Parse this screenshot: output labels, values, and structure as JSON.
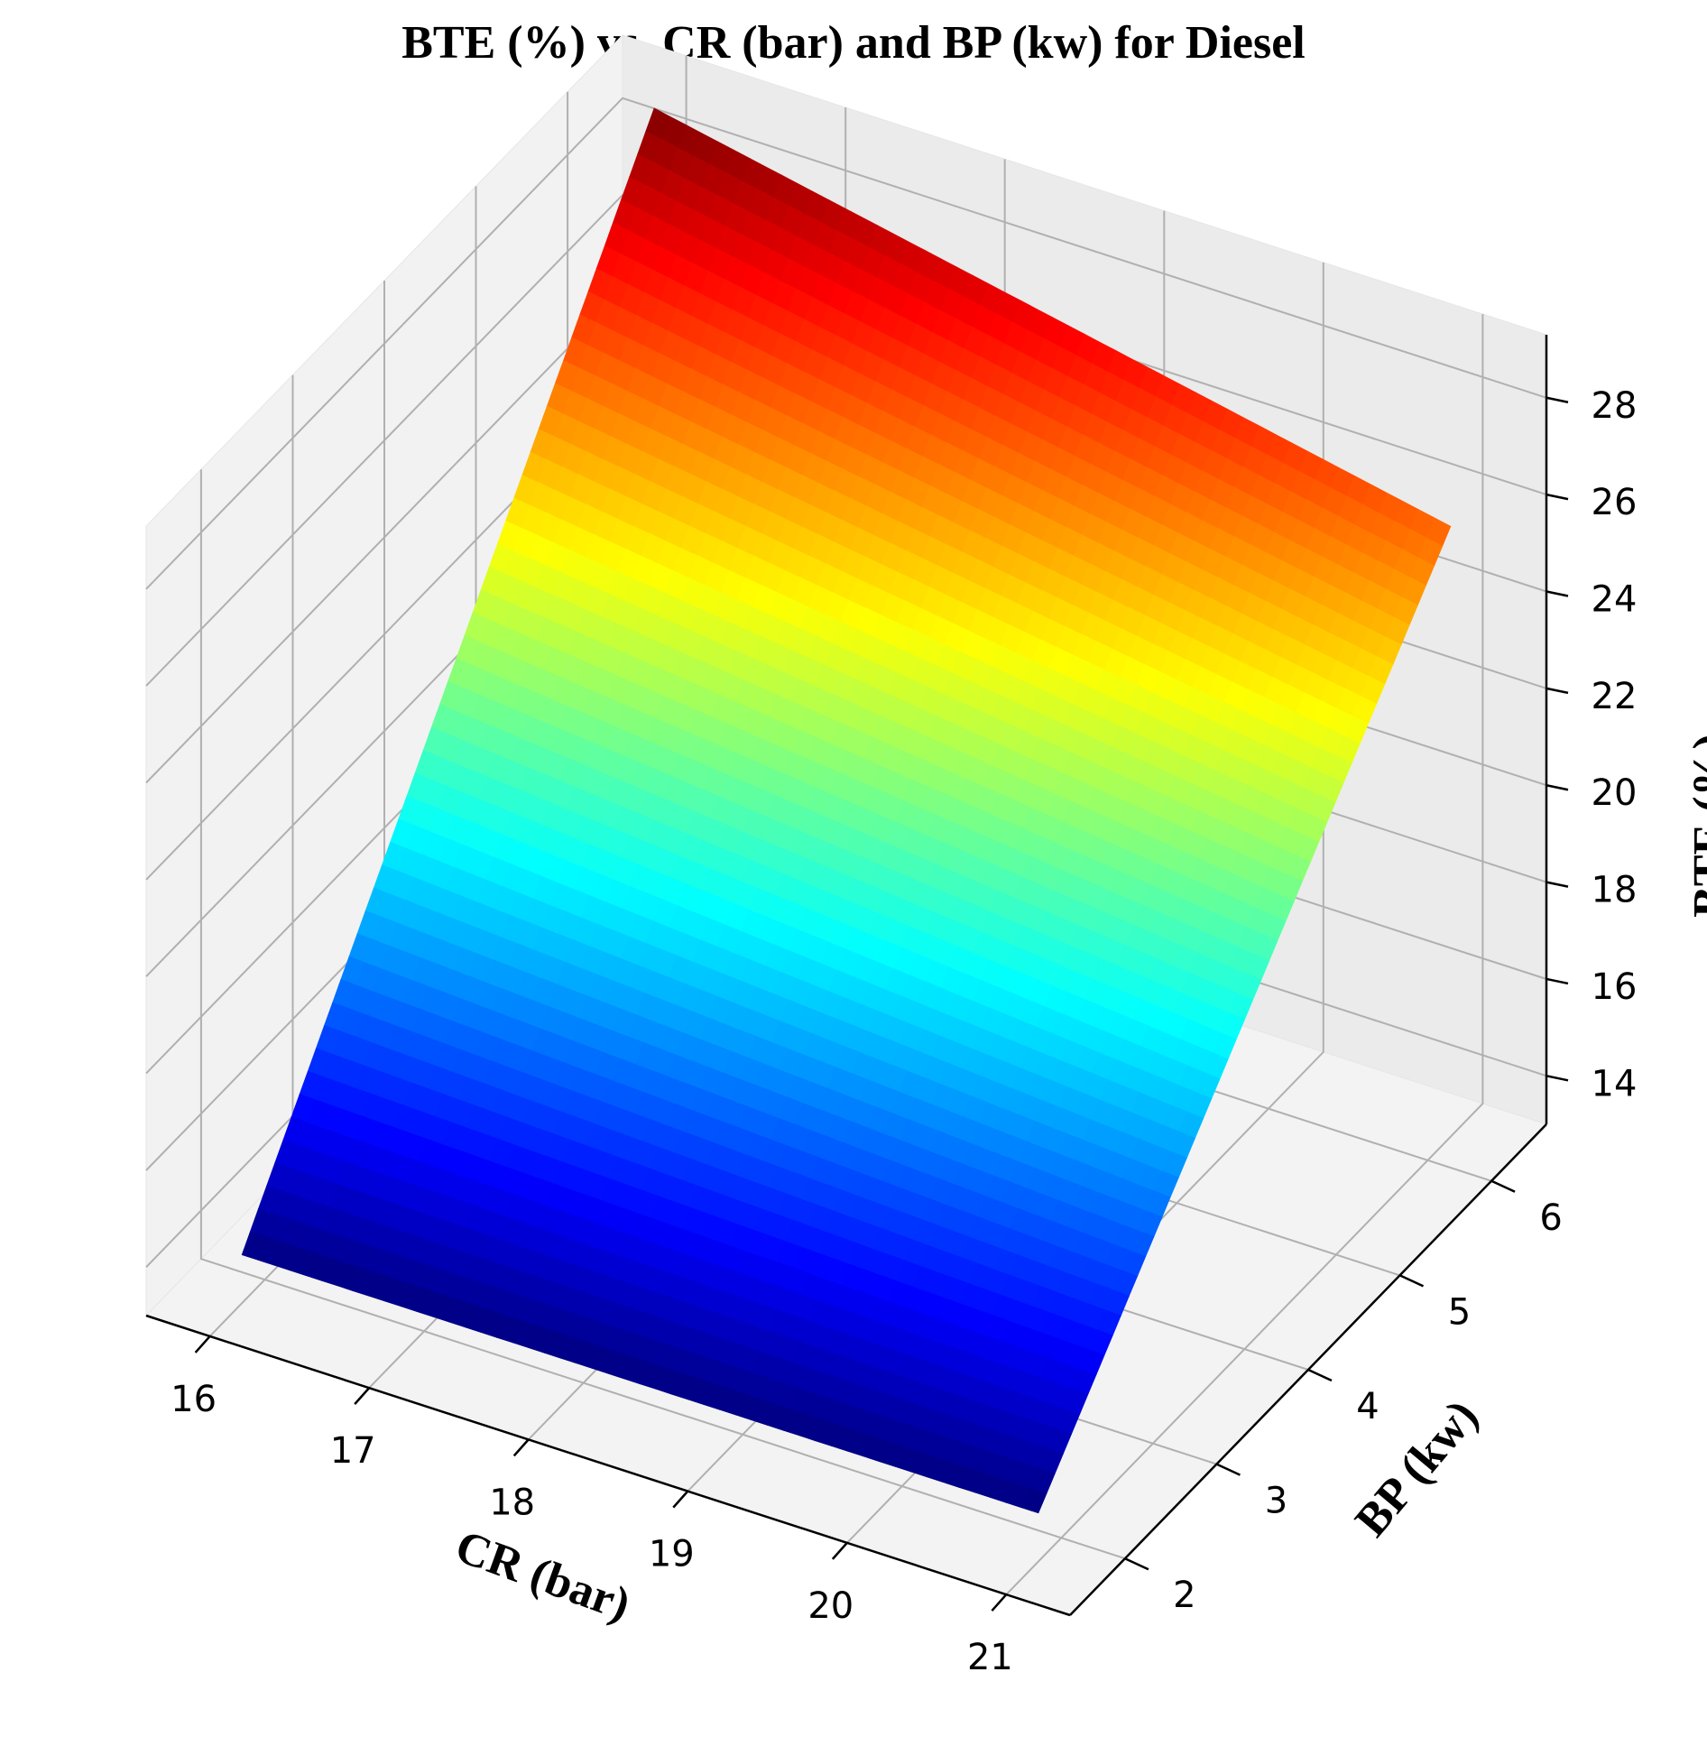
{
  "chart_data": {
    "type": "surface",
    "title": "BTE (%) vs. CR (bar) and BP (kw) for Diesel",
    "xlabel": "CR (bar)",
    "ylabel": "BP (kw)",
    "zlabel": "BTE (%)",
    "xlim": [
      15.6,
      21.4
    ],
    "ylim": [
      1.4,
      6.6
    ],
    "zlim": [
      13.0,
      29.3
    ],
    "xticks": [
      "16",
      "17",
      "18",
      "19",
      "20",
      "21"
    ],
    "yticks": [
      "2",
      "3",
      "4",
      "5",
      "6"
    ],
    "zticks": [
      "14",
      "16",
      "18",
      "20",
      "22",
      "24",
      "26",
      "28"
    ],
    "grid": true,
    "colormap": "jet",
    "surface": {
      "cr": [
        16,
        21
      ],
      "bp": [
        1.75,
        6.25
      ],
      "bte": [
        [
          14.0,
          14.0
        ],
        [
          28.9,
          25.6
        ]
      ],
      "rows": 50,
      "cols": 50
    }
  }
}
